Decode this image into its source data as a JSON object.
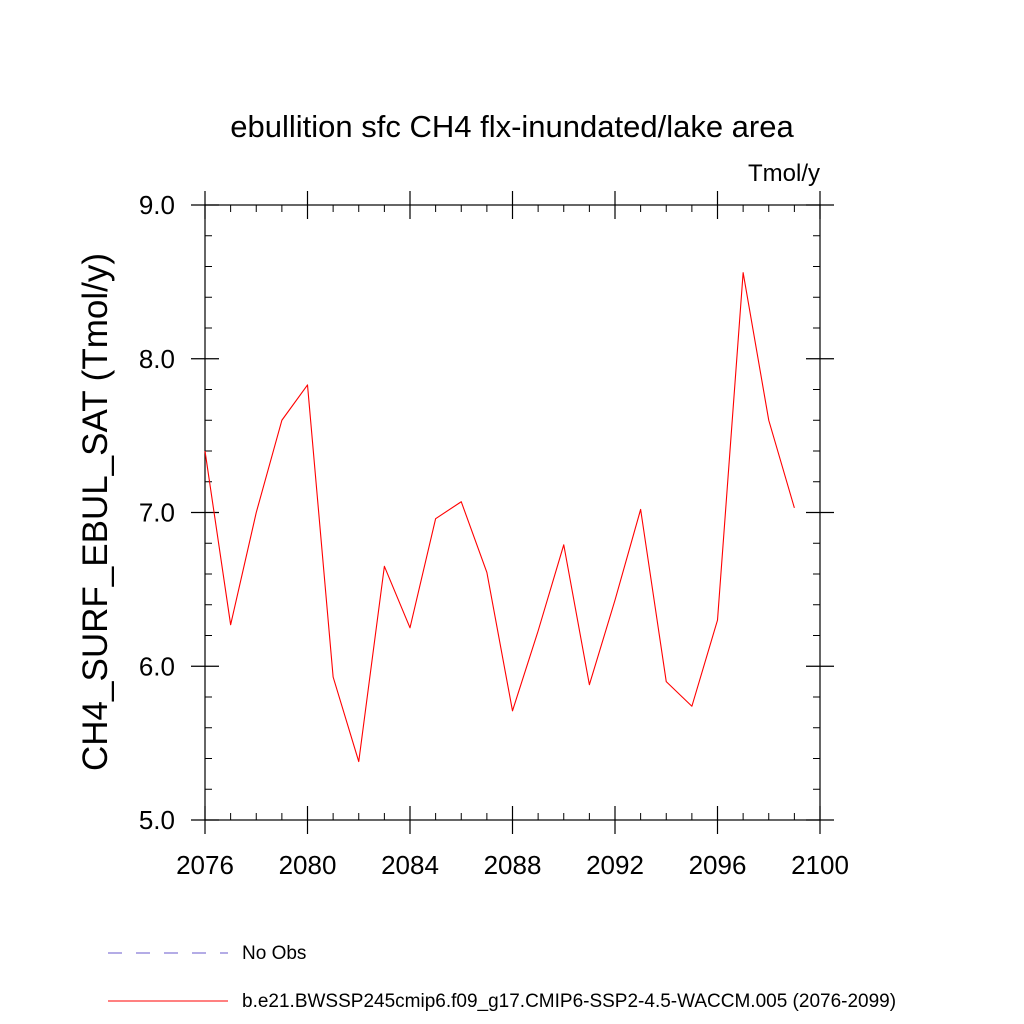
{
  "chart_data": {
    "type": "line",
    "title": "ebullition sfc CH4 flx-inundated/lake area",
    "units_label": "Tmol/y",
    "xlabel": "",
    "ylabel": "CH4_SURF_EBUL_SAT  (Tmol/y)",
    "xlim": [
      2076,
      2100
    ],
    "ylim": [
      5.0,
      9.0
    ],
    "x_ticks": [
      2076,
      2080,
      2084,
      2088,
      2092,
      2096,
      2100
    ],
    "x_tick_labels": [
      "2076",
      "2080",
      "2084",
      "2088",
      "2092",
      "2096",
      "2100"
    ],
    "y_ticks": [
      5.0,
      6.0,
      7.0,
      8.0,
      9.0
    ],
    "y_tick_labels": [
      "5.0",
      "6.0",
      "7.0",
      "8.0",
      "9.0"
    ],
    "x_minor_step": 1,
    "y_minor_step": 0.2,
    "grid": false,
    "legend_position": "bottom",
    "series": [
      {
        "name": "b.e21.BWSSP245cmip6.f09_g17.CMIP6-SSP2-4.5-WACCM.005 (2076-2099)",
        "color": "#ff0000",
        "style": "solid",
        "x": [
          2076,
          2077,
          2078,
          2079,
          2080,
          2081,
          2082,
          2083,
          2084,
          2085,
          2086,
          2087,
          2088,
          2089,
          2090,
          2091,
          2092,
          2093,
          2094,
          2095,
          2096,
          2097,
          2098,
          2099
        ],
        "values": [
          7.4,
          6.27,
          7.0,
          7.6,
          7.83,
          5.93,
          5.38,
          6.65,
          6.25,
          6.96,
          7.07,
          6.61,
          5.71,
          6.23,
          6.79,
          5.88,
          6.43,
          7.02,
          5.9,
          5.74,
          6.3,
          8.56,
          7.6,
          7.03
        ]
      }
    ],
    "legend": [
      {
        "label": "No Obs",
        "color": "#6a5acd",
        "style": "dashed"
      },
      {
        "label": "b.e21.BWSSP245cmip6.f09_g17.CMIP6-SSP2-4.5-WACCM.005 (2076-2099)",
        "color": "#ff0000",
        "style": "solid"
      }
    ]
  }
}
